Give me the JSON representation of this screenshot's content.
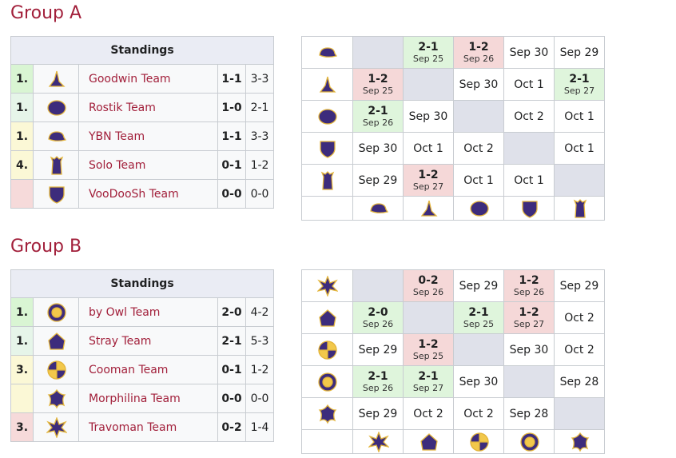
{
  "groups": [
    {
      "title": "Group A",
      "standings": {
        "header": "Standings",
        "rows": [
          {
            "rank": "1.",
            "team": "Goodwin Team",
            "match": "1-1",
            "games": "3-3",
            "color": "#d9f5d3"
          },
          {
            "rank": "1.",
            "team": "Rostik Team",
            "match": "1-0",
            "games": "2-1",
            "color": "#e6f5e9"
          },
          {
            "rank": "1.",
            "team": "YBN Team",
            "match": "1-1",
            "games": "3-3",
            "color": "#fbf8d6"
          },
          {
            "rank": "4.",
            "team": "Solo Team",
            "match": "0-1",
            "games": "1-2",
            "color": "#fbf8d6"
          },
          {
            "team": "VooDooSh Team",
            "match": "0-0",
            "games": "0-0",
            "color": "#f6dada"
          }
        ]
      },
      "matrix": [
        [
          null,
          {
            "score": "2-1",
            "date": "Sep 25",
            "result": "win"
          },
          {
            "score": "1-2",
            "date": "Sep 26",
            "result": "loss"
          },
          {
            "date": "Sep 30"
          },
          {
            "date": "Sep 29"
          }
        ],
        [
          {
            "score": "1-2",
            "date": "Sep 25",
            "result": "loss"
          },
          null,
          {
            "date": "Sep 30"
          },
          {
            "date": "Oct 1"
          },
          {
            "score": "2-1",
            "date": "Sep 27",
            "result": "win"
          }
        ],
        [
          {
            "score": "2-1",
            "date": "Sep 26",
            "result": "win"
          },
          {
            "date": "Sep 30"
          },
          null,
          {
            "date": "Oct 2"
          },
          {
            "date": "Oct 1"
          }
        ],
        [
          {
            "date": "Sep 30"
          },
          {
            "date": "Oct 1"
          },
          {
            "date": "Oct 2"
          },
          null,
          {
            "date": "Oct 1"
          }
        ],
        [
          {
            "date": "Sep 29"
          },
          {
            "score": "1-2",
            "date": "Sep 27",
            "result": "loss"
          },
          {
            "date": "Oct 1"
          },
          {
            "date": "Oct 1"
          },
          null
        ]
      ]
    },
    {
      "title": "Group B",
      "standings": {
        "header": "Standings",
        "rows": [
          {
            "rank": "1.",
            "team": "by Owl Team",
            "match": "2-0",
            "games": "4-2",
            "color": "#d9f5d3"
          },
          {
            "rank": "1.",
            "team": "Stray Team",
            "match": "2-1",
            "games": "5-3",
            "color": "#e6f5e9"
          },
          {
            "rank": "3.",
            "team": "Cooman Team",
            "match": "0-1",
            "games": "1-2",
            "color": "#fbf8d6"
          },
          {
            "team": "Morphilina Team",
            "match": "0-0",
            "games": "0-0",
            "color": "#fbf8d6"
          },
          {
            "rank": "3.",
            "team": "Travoman Team",
            "match": "0-2",
            "games": "1-4",
            "color": "#f6dada"
          }
        ]
      },
      "matrix": [
        [
          null,
          {
            "score": "0-2",
            "date": "Sep 26",
            "result": "loss"
          },
          {
            "date": "Sep 29"
          },
          {
            "score": "1-2",
            "date": "Sep 26",
            "result": "loss"
          },
          {
            "date": "Sep 29"
          }
        ],
        [
          {
            "score": "2-0",
            "date": "Sep 26",
            "result": "win"
          },
          null,
          {
            "score": "2-1",
            "date": "Sep 25",
            "result": "win"
          },
          {
            "score": "1-2",
            "date": "Sep 27",
            "result": "loss"
          },
          {
            "date": "Oct 2"
          }
        ],
        [
          {
            "date": "Sep 29"
          },
          {
            "score": "1-2",
            "date": "Sep 25",
            "result": "loss"
          },
          null,
          {
            "date": "Sep 30"
          },
          {
            "date": "Oct 2"
          }
        ],
        [
          {
            "score": "2-1",
            "date": "Sep 26",
            "result": "win"
          },
          {
            "score": "2-1",
            "date": "Sep 27",
            "result": "win"
          },
          {
            "date": "Sep 30"
          },
          null,
          {
            "date": "Sep 28"
          }
        ],
        [
          {
            "date": "Sep 29"
          },
          {
            "date": "Oct 2"
          },
          {
            "date": "Oct 2"
          },
          {
            "date": "Sep 28"
          },
          null
        ]
      ]
    }
  ]
}
